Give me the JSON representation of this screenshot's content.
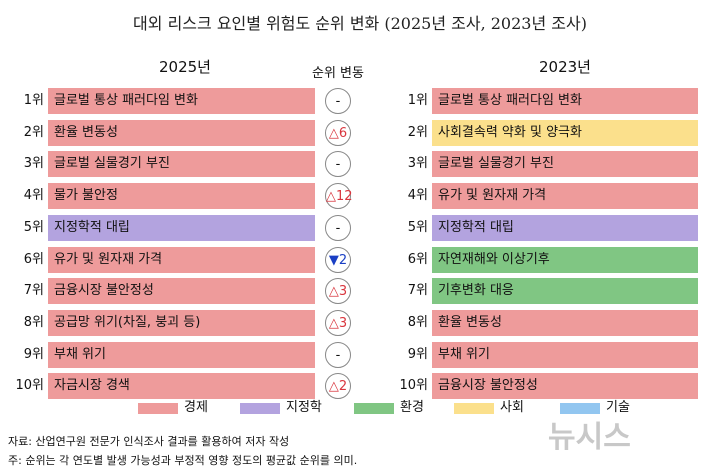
{
  "title": "대외 리스크 요인별 위험도 순위 변화 (2025년 조사, 2023년 조사)",
  "headers": {
    "left": "2025년",
    "middle": "순위 변동",
    "right": "2023년"
  },
  "ranks": [
    "1위",
    "2위",
    "3위",
    "4위",
    "5위",
    "6위",
    "7위",
    "8위",
    "9위",
    "10위"
  ],
  "legend": [
    {
      "name": "경제",
      "color": "#ee9b9b"
    },
    {
      "name": "지정학",
      "color": "#b3a3df"
    },
    {
      "name": "환경",
      "color": "#80c683"
    },
    {
      "name": "사회",
      "color": "#fbe08c"
    },
    {
      "name": "기술",
      "color": "#92c6f0"
    }
  ],
  "rows_2025": [
    {
      "label": "글로벌 통상 패러다임 변화",
      "category": "경제",
      "change": "-"
    },
    {
      "label": "환율 변동성",
      "category": "경제",
      "change": "△6"
    },
    {
      "label": "글로벌 실물경기 부진",
      "category": "경제",
      "change": "-"
    },
    {
      "label": "물가 불안정",
      "category": "경제",
      "change": "△12"
    },
    {
      "label": "지정학적 대립",
      "category": "지정학",
      "change": "-"
    },
    {
      "label": "유가 및 원자재 가격",
      "category": "경제",
      "change": "▼2"
    },
    {
      "label": "금융시장 불안정성",
      "category": "경제",
      "change": "△3"
    },
    {
      "label": "공급망 위기(차질, 붕괴 등)",
      "category": "경제",
      "change": "△3"
    },
    {
      "label": "부채 위기",
      "category": "경제",
      "change": "-"
    },
    {
      "label": "자금시장 경색",
      "category": "경제",
      "change": "△2"
    }
  ],
  "rows_2023": [
    {
      "label": "글로벌 통상 패러다임 변화",
      "category": "경제"
    },
    {
      "label": "사회결속력 약화 및 양극화",
      "category": "사회"
    },
    {
      "label": "글로벌 실물경기 부진",
      "category": "경제"
    },
    {
      "label": "유가 및 원자재 가격",
      "category": "경제"
    },
    {
      "label": "지정학적 대립",
      "category": "지정학"
    },
    {
      "label": "자연재해와 이상기후",
      "category": "환경"
    },
    {
      "label": "기후변화 대응",
      "category": "환경"
    },
    {
      "label": "환율 변동성",
      "category": "경제"
    },
    {
      "label": "부채 위기",
      "category": "경제"
    },
    {
      "label": "금융시장 불안정성",
      "category": "경제"
    }
  ],
  "notes": [
    "자료: 산업연구원 전문가 인식조사 결과를 활용하여 저자 작성",
    "주: 순위는 각 연도별 발생 가능성과 부정적 영향 정도의 평균값 순위를 의미."
  ],
  "watermark": "뉴시스"
}
